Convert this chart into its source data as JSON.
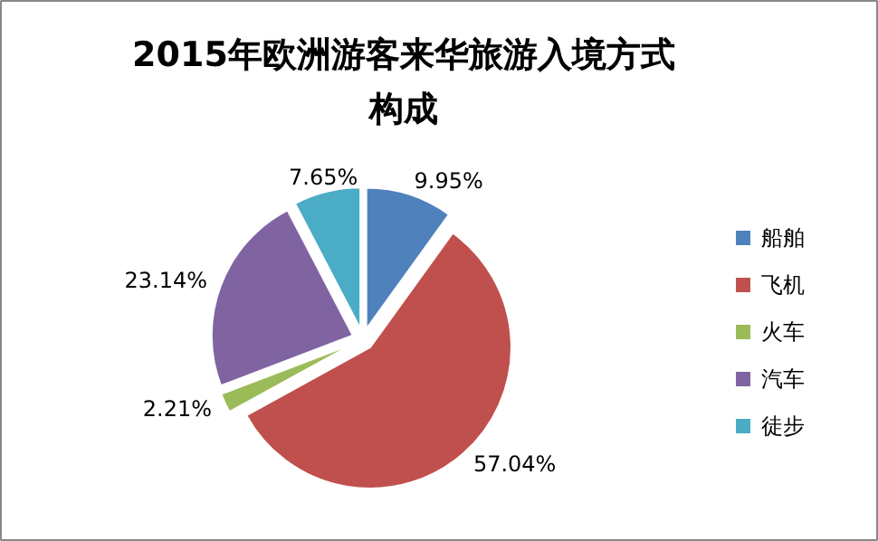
{
  "chart_data": {
    "type": "pie",
    "title": "2015年欧洲游客来华旅游入境方式构成",
    "categories": [
      "船舶",
      "飞机",
      "火车",
      "汽车",
      "徒步"
    ],
    "values": [
      9.95,
      57.04,
      2.21,
      23.14,
      7.65
    ],
    "colors": [
      "#4f81bd",
      "#c0504d",
      "#9bbb59",
      "#8064a2",
      "#4bacc6"
    ],
    "value_labels": [
      "9.95%",
      "57.04%",
      "2.21%",
      "23.14%",
      "7.65%"
    ],
    "legend": "right"
  }
}
